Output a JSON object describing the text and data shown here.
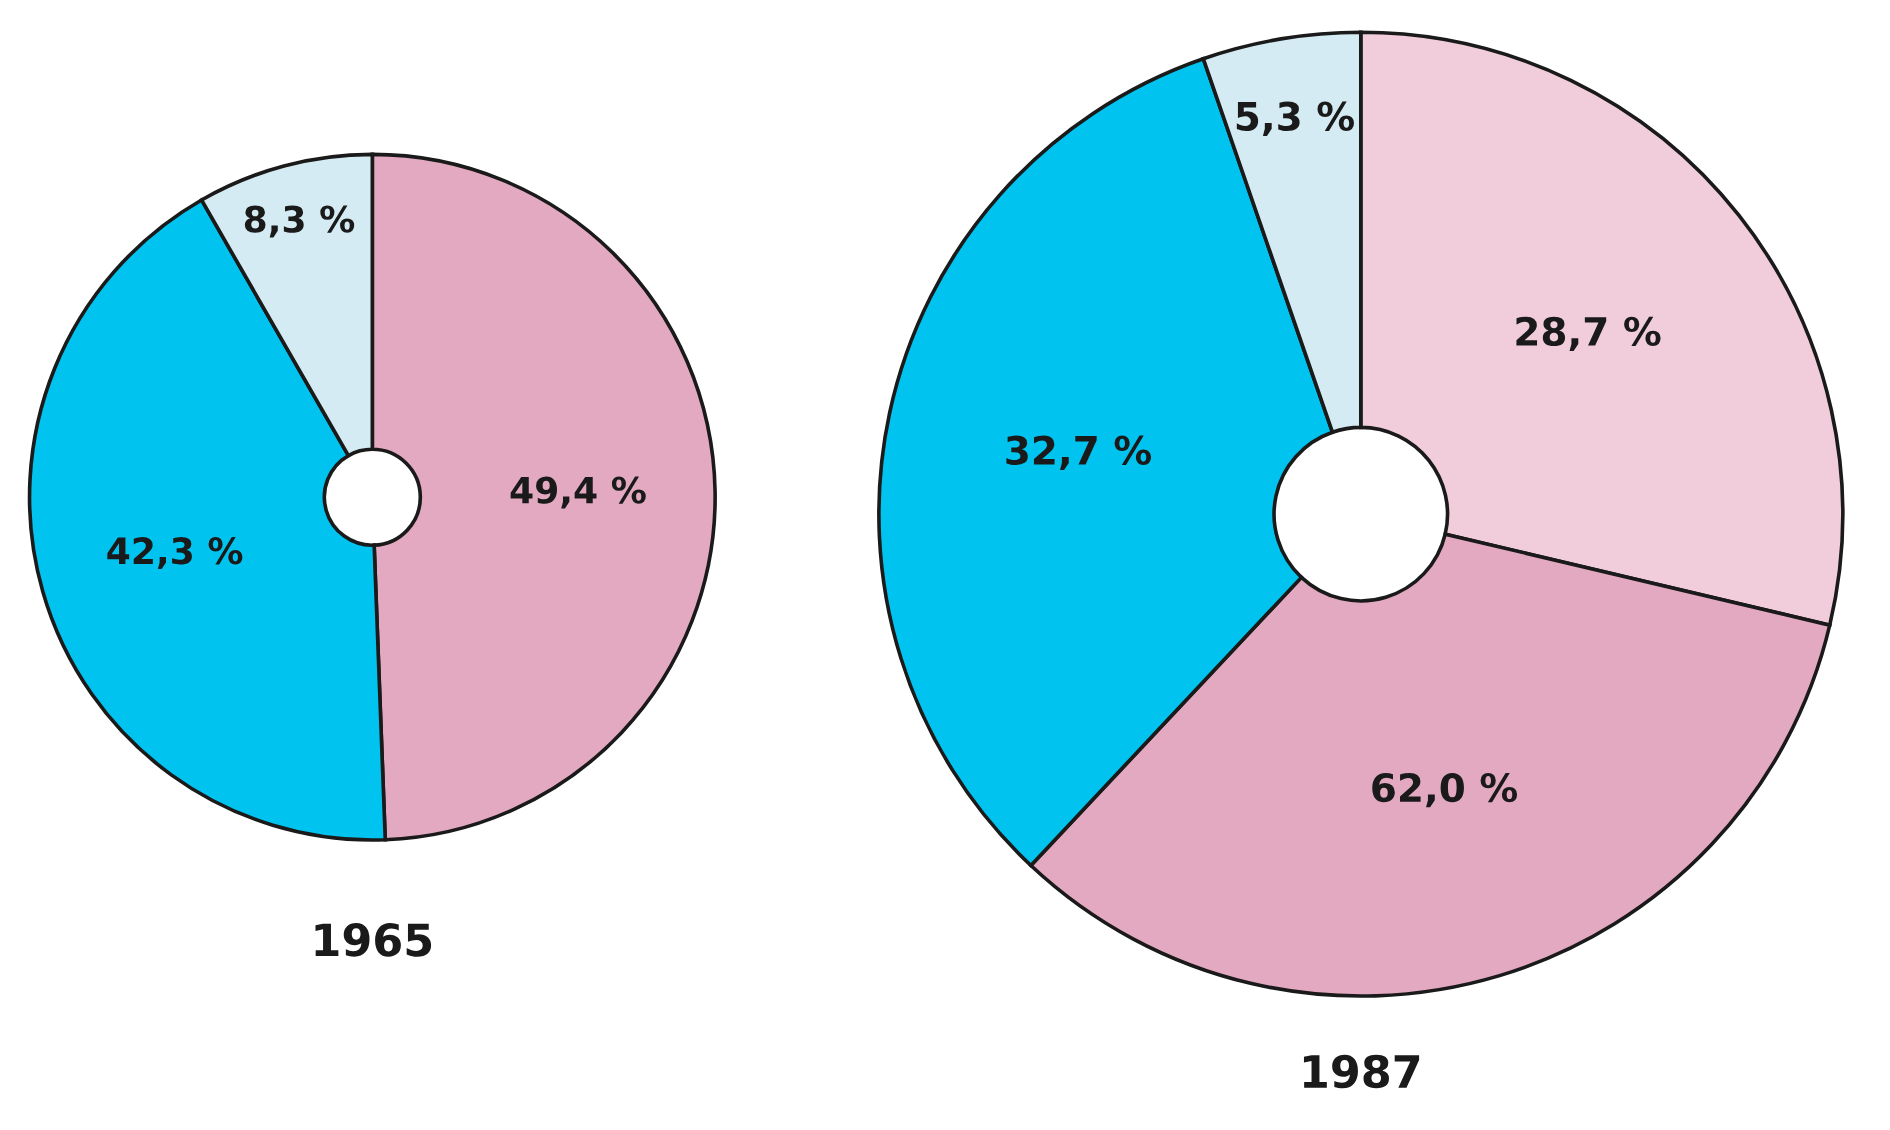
{
  "chart_data": [
    {
      "type": "donut",
      "title": "1965",
      "categories": [
        null,
        null,
        null
      ],
      "values": [
        49.4,
        42.3,
        8.3
      ],
      "colors": [
        "#e3a9c0",
        "#00c4ef",
        "#d5ebf3"
      ],
      "value_labels": [
        "49,4 %",
        "42,3 %",
        "8,3 %"
      ]
    },
    {
      "type": "donut",
      "title": "1987",
      "categories": [
        null,
        null,
        null,
        null
      ],
      "values": [
        28.7,
        33.3,
        32.7,
        5.3
      ],
      "colors": [
        "#f1cddb",
        "#e3a9c0",
        "#00c4ef",
        "#d5ebf3"
      ],
      "value_labels": [
        "28,7 %",
        null,
        "32,7 %",
        "5,3 %"
      ],
      "annotations": [
        "62,0 %"
      ]
    }
  ]
}
